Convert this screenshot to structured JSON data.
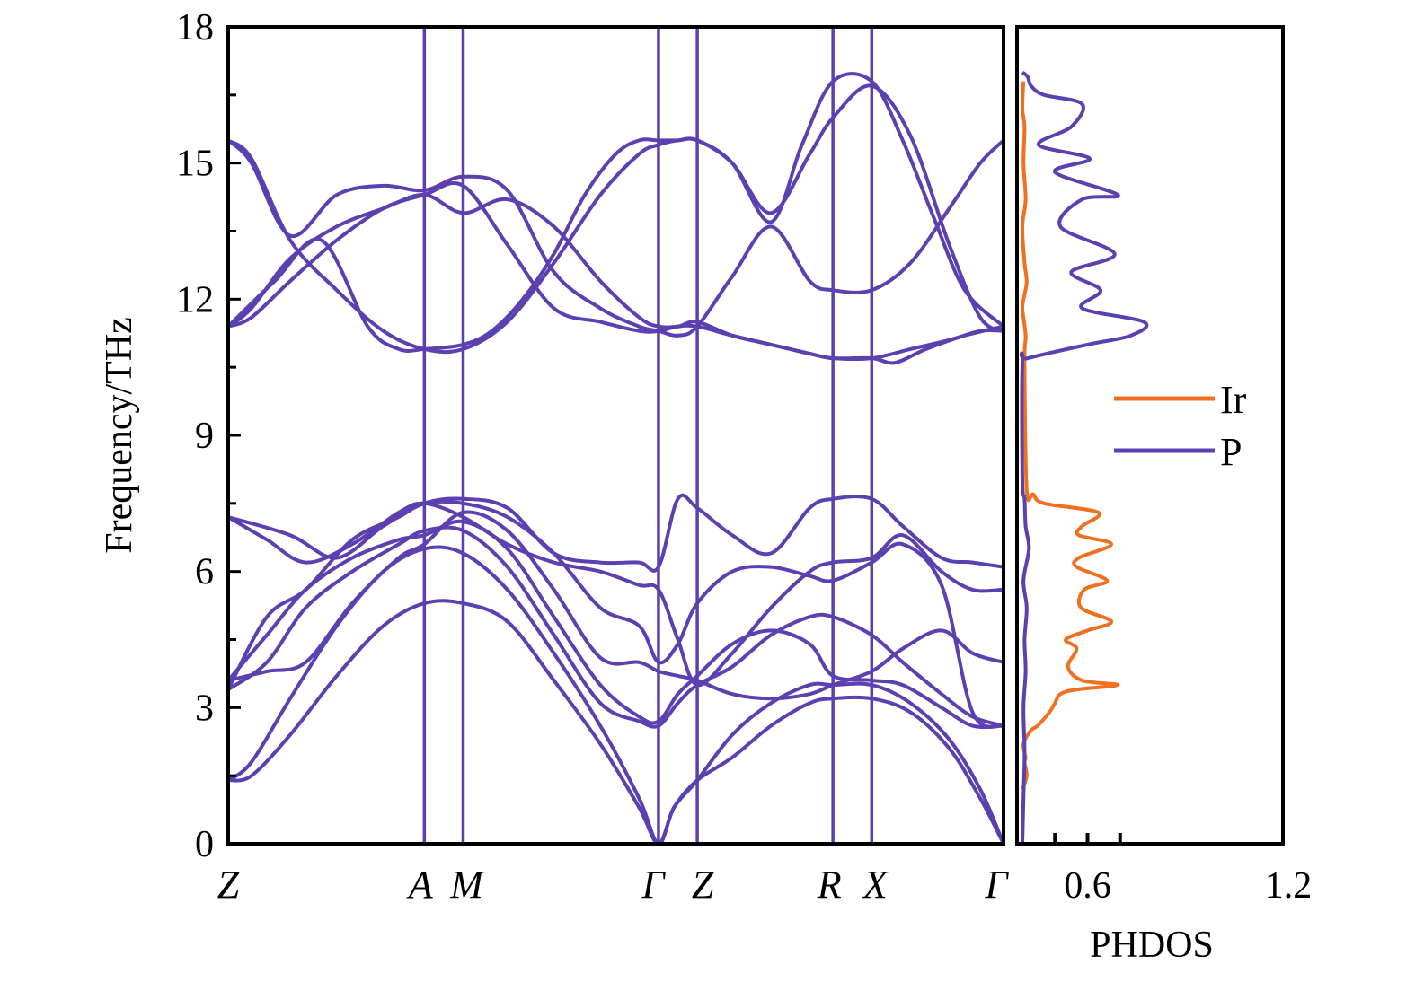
{
  "chart_data": [
    {
      "type": "line",
      "title": "",
      "subtype": "phonon-band-structure",
      "ylabel": "Frequency/THz",
      "xlabel": "",
      "ylim": [
        0,
        18
      ],
      "yticks": [
        "0",
        "3",
        "6",
        "9",
        "12",
        "15",
        "18"
      ],
      "high_symmetry_points": [
        "Z",
        "A",
        "M",
        "Γ",
        "Z",
        "R",
        "X",
        "Γ"
      ],
      "kpath_positions": [
        0,
        0.253,
        0.303,
        0.555,
        0.605,
        0.78,
        0.83,
        1.0
      ],
      "segment_boundaries": [
        0,
        0.253,
        0.303,
        0.555,
        0.605,
        0.78,
        0.83,
        1.0
      ],
      "color": "#5c3fb0",
      "series": [
        {
          "name": "band-1",
          "x": [
            0,
            0.03,
            0.08,
            0.14,
            0.2,
            0.253,
            0.303,
            0.36,
            0.42,
            0.48,
            0.53,
            0.555,
            0.575,
            0.605,
            0.65,
            0.7,
            0.75,
            0.78,
            0.83,
            0.88,
            0.93,
            0.97,
            1.0
          ],
          "y": [
            1.4,
            1.5,
            2.4,
            3.7,
            4.8,
            5.3,
            5.3,
            4.9,
            3.6,
            2.2,
            0.8,
            0,
            0.8,
            1.4,
            1.9,
            2.6,
            3.1,
            3.2,
            3.2,
            2.9,
            2.1,
            1.0,
            0
          ]
        },
        {
          "name": "band-2",
          "x": [
            0,
            0.03,
            0.08,
            0.14,
            0.2,
            0.253,
            0.303,
            0.36,
            0.42,
            0.48,
            0.53,
            0.555,
            0.575,
            0.605,
            0.65,
            0.7,
            0.75,
            0.78,
            0.83,
            0.88,
            0.93,
            0.97,
            1.0
          ],
          "y": [
            1.4,
            1.8,
            3.2,
            4.8,
            6.0,
            6.5,
            6.4,
            5.6,
            4.2,
            2.6,
            1.0,
            0,
            0.8,
            1.4,
            2.4,
            3.1,
            3.5,
            3.5,
            3.5,
            3.1,
            2.3,
            1.2,
            0
          ]
        },
        {
          "name": "band-3",
          "x": [
            0,
            0.05,
            0.1,
            0.16,
            0.22,
            0.253,
            0.303,
            0.36,
            0.42,
            0.48,
            0.53,
            0.555,
            0.58,
            0.605,
            0.65,
            0.7,
            0.75,
            0.78,
            0.83,
            0.87,
            0.92,
            0.96,
            1.0
          ],
          "y": [
            3.4,
            4.0,
            5.2,
            6.0,
            6.6,
            6.9,
            6.9,
            6.1,
            4.6,
            3.1,
            2.7,
            2.6,
            3.1,
            3.5,
            3.9,
            4.6,
            5.0,
            5.0,
            4.6,
            4.0,
            3.3,
            2.8,
            2.6
          ]
        },
        {
          "name": "band-4",
          "x": [
            0,
            0.05,
            0.1,
            0.16,
            0.22,
            0.253,
            0.303,
            0.36,
            0.42,
            0.48,
            0.53,
            0.555,
            0.58,
            0.605,
            0.65,
            0.7,
            0.75,
            0.78,
            0.83,
            0.87,
            0.92,
            0.96,
            1.0
          ],
          "y": [
            3.6,
            4.6,
            5.6,
            6.3,
            6.7,
            6.8,
            7.1,
            6.5,
            5.0,
            3.5,
            2.8,
            2.7,
            3.3,
            3.7,
            4.4,
            4.7,
            4.4,
            3.7,
            3.6,
            3.5,
            3.0,
            2.6,
            2.6
          ]
        },
        {
          "name": "band-5",
          "x": [
            0,
            0.05,
            0.1,
            0.16,
            0.22,
            0.253,
            0.303,
            0.36,
            0.42,
            0.48,
            0.53,
            0.555,
            0.58,
            0.605,
            0.65,
            0.7,
            0.75,
            0.78,
            0.83,
            0.87,
            0.92,
            0.96,
            1.0
          ],
          "y": [
            3.6,
            3.8,
            4.0,
            5.3,
            6.3,
            6.6,
            7.3,
            6.9,
            5.6,
            4.1,
            4.0,
            3.8,
            3.7,
            3.6,
            3.3,
            3.2,
            3.3,
            3.5,
            3.8,
            4.3,
            4.7,
            4.2,
            4.0
          ]
        },
        {
          "name": "band-6",
          "x": [
            0,
            0.05,
            0.1,
            0.16,
            0.22,
            0.253,
            0.303,
            0.36,
            0.42,
            0.48,
            0.53,
            0.555,
            0.58,
            0.605,
            0.65,
            0.7,
            0.75,
            0.78,
            0.83,
            0.87,
            0.92,
            0.96,
            1.0
          ],
          "y": [
            3.4,
            5.0,
            5.6,
            6.7,
            7.2,
            7.5,
            7.5,
            7.2,
            6.4,
            5.2,
            4.8,
            4.0,
            4.4,
            5.3,
            6.0,
            6.1,
            5.9,
            5.8,
            6.2,
            6.6,
            5.7,
            2.9,
            2.6
          ]
        },
        {
          "name": "band-7",
          "x": [
            0,
            0.05,
            0.1,
            0.16,
            0.22,
            0.253,
            0.303,
            0.36,
            0.42,
            0.48,
            0.53,
            0.555,
            0.58,
            0.605,
            0.65,
            0.7,
            0.75,
            0.78,
            0.83,
            0.87,
            0.92,
            0.96,
            1.0
          ],
          "y": [
            7.2,
            6.7,
            6.2,
            6.6,
            7.3,
            7.5,
            7.2,
            6.6,
            6.2,
            6.0,
            5.7,
            5.6,
            4.5,
            3.5,
            4.2,
            5.2,
            6.0,
            6.2,
            6.3,
            6.8,
            6.0,
            5.6,
            5.6
          ]
        },
        {
          "name": "band-8",
          "x": [
            0,
            0.08,
            0.14,
            0.2,
            0.253,
            0.303,
            0.36,
            0.42,
            0.48,
            0.53,
            0.555,
            0.58,
            0.605,
            0.65,
            0.7,
            0.75,
            0.78,
            0.83,
            0.87,
            0.92,
            0.96,
            1.0
          ],
          "y": [
            7.2,
            6.8,
            6.3,
            7.0,
            7.5,
            7.6,
            7.4,
            6.4,
            6.2,
            6.2,
            6.1,
            7.6,
            7.4,
            6.8,
            6.4,
            7.4,
            7.6,
            7.6,
            7.0,
            6.3,
            6.2,
            6.1
          ]
        },
        {
          "name": "band-9",
          "x": [
            0,
            0.03,
            0.08,
            0.14,
            0.2,
            0.253,
            0.303,
            0.36,
            0.42,
            0.48,
            0.53,
            0.555,
            0.58,
            0.605,
            0.65,
            0.7,
            0.75,
            0.78,
            0.83,
            0.88,
            0.93,
            0.97,
            1.0
          ],
          "y": [
            11.4,
            11.6,
            12.4,
            13.3,
            14.0,
            14.3,
            14.5,
            13.2,
            11.8,
            11.5,
            11.3,
            11.3,
            11.4,
            11.4,
            11.2,
            11.0,
            10.8,
            10.7,
            10.7,
            10.9,
            11.1,
            11.3,
            11.3
          ]
        },
        {
          "name": "band-10",
          "x": [
            0,
            0.03,
            0.08,
            0.14,
            0.2,
            0.253,
            0.303,
            0.36,
            0.42,
            0.48,
            0.53,
            0.555,
            0.58,
            0.605,
            0.65,
            0.7,
            0.75,
            0.78,
            0.83,
            0.86,
            0.9,
            0.95,
            1.0
          ],
          "y": [
            11.4,
            11.8,
            12.9,
            13.6,
            14.0,
            14.3,
            13.9,
            14.2,
            13.6,
            12.4,
            11.6,
            11.4,
            11.4,
            11.5,
            11.2,
            11.0,
            10.8,
            10.7,
            10.7,
            10.6,
            10.9,
            11.2,
            11.4
          ]
        },
        {
          "name": "band-11",
          "x": [
            0,
            0.03,
            0.08,
            0.14,
            0.2,
            0.253,
            0.303,
            0.36,
            0.42,
            0.48,
            0.53,
            0.555,
            0.58,
            0.605,
            0.65,
            0.7,
            0.75,
            0.78,
            0.83,
            0.88,
            0.93,
            0.97,
            1.0
          ],
          "y": [
            15.5,
            15.0,
            13.4,
            14.3,
            14.5,
            14.4,
            14.7,
            14.4,
            12.6,
            11.8,
            11.4,
            11.3,
            11.2,
            11.4,
            12.5,
            13.6,
            12.4,
            12.2,
            12.2,
            12.8,
            14.0,
            15.0,
            15.5
          ]
        },
        {
          "name": "band-12",
          "x": [
            0,
            0.03,
            0.08,
            0.14,
            0.2,
            0.253,
            0.303,
            0.36,
            0.42,
            0.48,
            0.53,
            0.555,
            0.58,
            0.605,
            0.65,
            0.7,
            0.75,
            0.78,
            0.83,
            0.88,
            0.93,
            0.97,
            1.0
          ],
          "y": [
            15.5,
            15.1,
            13.3,
            12.2,
            11.3,
            10.9,
            10.9,
            11.5,
            12.8,
            14.3,
            15.2,
            15.4,
            15.5,
            15.5,
            15.0,
            13.9,
            15.2,
            16.0,
            16.7,
            15.6,
            13.2,
            11.6,
            11.3
          ]
        },
        {
          "name": "band-13",
          "x": [
            0,
            0.06,
            0.12,
            0.18,
            0.22,
            0.253,
            0.303,
            0.34,
            0.38,
            0.42,
            0.46,
            0.5,
            0.53,
            0.555,
            0.58,
            0.605,
            0.65,
            0.7,
            0.74,
            0.78,
            0.83,
            0.87,
            0.91,
            0.95,
            1.0
          ],
          "y": [
            11.4,
            12.4,
            13.3,
            11.4,
            10.9,
            10.9,
            11.0,
            11.3,
            12.0,
            13.0,
            14.3,
            15.2,
            15.5,
            15.5,
            15.5,
            15.5,
            15.0,
            13.7,
            15.4,
            16.8,
            16.8,
            15.5,
            13.8,
            12.2,
            11.4
          ]
        }
      ]
    },
    {
      "type": "line",
      "title": "",
      "subtype": "phonon-density-of-states",
      "xlabel": "PHDOS",
      "ylabel": "",
      "xlim": [
        0,
        1.2
      ],
      "ylim": [
        0,
        18
      ],
      "xticks": [
        "0.6",
        "1.2"
      ],
      "legend_position": "right",
      "series": [
        {
          "name": "Ir",
          "color": "#f07020",
          "x": [
            0.0,
            0.04,
            0.02,
            0.03,
            0.01,
            0.08,
            0.14,
            0.25,
            0.3,
            0.35,
            0.5,
            0.88,
            0.55,
            0.42,
            0.5,
            0.4,
            0.6,
            0.82,
            0.54,
            0.57,
            0.78,
            0.5,
            0.52,
            0.82,
            0.52,
            0.55,
            0.7,
            0.2,
            0.1,
            0.04,
            0.02,
            0.03,
            0.0,
            0.02,
            0.04,
            0.02,
            0.0,
            0.03,
            0.01,
            0.02,
            0.0,
            0.01
          ],
          "y": [
            1.2,
            1.5,
            1.8,
            1.9,
            2.2,
            2.5,
            2.6,
            2.9,
            3.1,
            3.3,
            3.4,
            3.5,
            3.6,
            3.9,
            4.3,
            4.5,
            4.7,
            4.9,
            5.2,
            5.6,
            5.8,
            6.1,
            6.3,
            6.6,
            6.8,
            7.0,
            7.3,
            7.5,
            7.7,
            7.8,
            10.6,
            11.2,
            11.8,
            12.1,
            12.4,
            12.8,
            13.6,
            14.2,
            15.0,
            15.8,
            16.2,
            16.8
          ]
        },
        {
          "name": "P",
          "color": "#5c3fb0",
          "x": [
            0.0,
            0.01,
            0.02,
            0.01,
            0.03,
            0.02,
            0.04,
            0.01,
            0.06,
            0.03,
            0.02,
            0.0,
            0.0,
            0.05,
            0.6,
            1.0,
            1.12,
            0.55,
            0.72,
            0.45,
            0.85,
            0.35,
            0.55,
            0.88,
            0.3,
            0.62,
            0.15,
            0.45,
            0.55,
            0.2,
            0.08,
            0.05,
            0.0
          ],
          "y": [
            0.0,
            1.0,
            2.0,
            3.0,
            3.8,
            4.5,
            5.2,
            5.8,
            6.5,
            7.0,
            7.6,
            8.0,
            10.6,
            10.7,
            11.0,
            11.2,
            11.5,
            11.8,
            12.2,
            12.6,
            13.0,
            13.6,
            14.2,
            14.3,
            14.8,
            15.1,
            15.4,
            15.8,
            16.3,
            16.5,
            16.7,
            16.9,
            17.0
          ]
        }
      ]
    }
  ]
}
